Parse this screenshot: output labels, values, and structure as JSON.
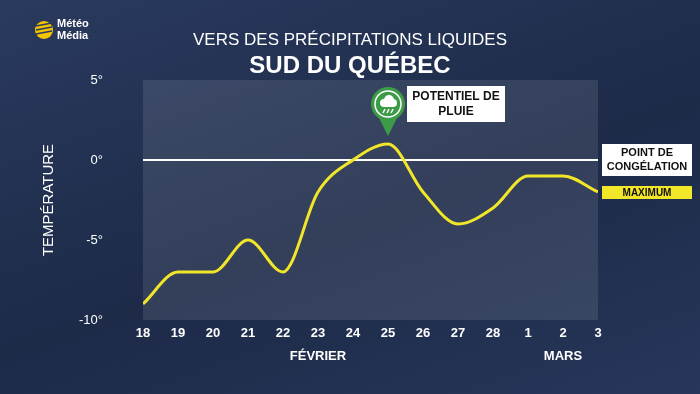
{
  "brand": "Météo Média",
  "chart_data": {
    "type": "line",
    "subtitle": "VERS DES PRÉCIPITATIONS LIQUIDES",
    "title": "SUD DU QUÉBEC",
    "y_label": "TEMPÉRATURE",
    "categories": [
      "18",
      "19",
      "20",
      "21",
      "22",
      "23",
      "24",
      "25",
      "26",
      "27",
      "28",
      "1",
      "2",
      "3"
    ],
    "month_labels": [
      {
        "label": "FÉVRIER",
        "from": "18",
        "to": "28"
      },
      {
        "label": "MARS",
        "from": "1",
        "to": "3"
      }
    ],
    "series": [
      {
        "name": "MAXIMUM",
        "color": "#f2e629",
        "marker": "none",
        "values": [
          -9,
          -7,
          -7,
          -5,
          -7,
          -2,
          0,
          1,
          -2,
          -4,
          -3,
          -1,
          -1,
          -2
        ]
      }
    ],
    "ylim": [
      -10,
      5
    ],
    "yticks": [
      {
        "value": -10,
        "label": "-10°"
      },
      {
        "value": -5,
        "label": "-5°"
      },
      {
        "value": 0,
        "label": "0°"
      },
      {
        "value": 5,
        "label": "5°"
      }
    ],
    "grid": false,
    "legend": "right",
    "reference_lines": [
      {
        "value": 0,
        "label": "POINT DE CONGÉLATION",
        "color": "#ffffff"
      }
    ],
    "annotations": [
      {
        "category": "25",
        "text": "POTENTIEL DE PLUIE"
      }
    ]
  }
}
